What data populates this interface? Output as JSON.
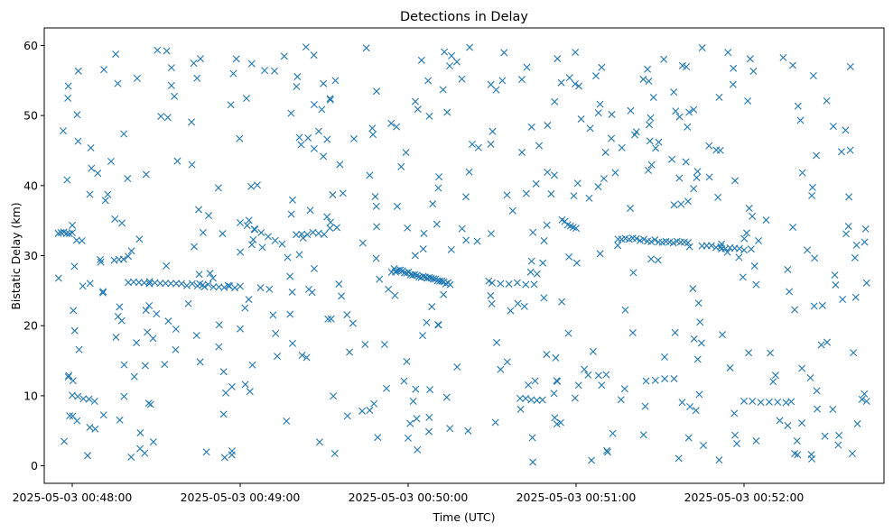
{
  "chart_data": {
    "type": "scatter",
    "title": "Detections in Delay",
    "xlabel": "Time (UTC)",
    "ylabel": "Bistatic Delay (km)",
    "marker": "x",
    "grid": false,
    "legend": "none",
    "color": "#1f77b4",
    "x_format": "YYYY-MM-DD HH:MM:SS",
    "xlim": [
      "2025-05-03 00:47:50",
      "2025-05-03 00:52:50"
    ],
    "ylim": [
      -2.5,
      62.5
    ],
    "x_ticks": [
      "2025-05-03 00:48:00",
      "2025-05-03 00:49:00",
      "2025-05-03 00:50:00",
      "2025-05-03 00:51:00",
      "2025-05-03 00:52:00"
    ],
    "y_ticks": [
      0,
      10,
      20,
      30,
      40,
      50,
      60
    ],
    "tracks": [
      {
        "x": [
          "00:48:20",
          "00:49:00"
        ],
        "y": [
          26.3,
          25.5
        ],
        "n": 22
      },
      {
        "x": [
          "00:49:55",
          "00:50:15"
        ],
        "y": [
          28.0,
          26.0
        ],
        "n": 28
      },
      {
        "x": [
          "00:51:15",
          "00:51:40"
        ],
        "y": [
          32.5,
          31.8
        ],
        "n": 20
      },
      {
        "x": [
          "00:51:45",
          "00:52:00"
        ],
        "y": [
          31.5,
          30.8
        ],
        "n": 10
      },
      {
        "x": [
          "00:47:55",
          "00:48:00"
        ],
        "y": [
          33.3,
          33.3
        ],
        "n": 6
      },
      {
        "x": [
          "00:50:55",
          "00:51:00"
        ],
        "y": [
          35.0,
          33.8
        ],
        "n": 6
      },
      {
        "x": [
          "00:49:20",
          "00:49:30"
        ],
        "y": [
          33.1,
          33.2
        ],
        "n": 6
      },
      {
        "x": [
          "00:49:00",
          "00:49:15"
        ],
        "y": [
          34.7,
          31.8
        ],
        "n": 7
      },
      {
        "x": [
          "00:48:00",
          "00:48:08"
        ],
        "y": [
          10.0,
          9.3
        ],
        "n": 5
      },
      {
        "x": [
          "00:50:40",
          "00:50:48"
        ],
        "y": [
          9.5,
          9.5
        ],
        "n": 5
      },
      {
        "x": [
          "00:51:25",
          "00:51:35"
        ],
        "y": [
          12.2,
          12.4
        ],
        "n": 4
      },
      {
        "x": [
          "00:52:00",
          "00:52:15"
        ],
        "y": [
          9.2,
          9.0
        ],
        "n": 6
      },
      {
        "x": [
          "00:50:30",
          "00:50:45"
        ],
        "y": [
          26.2,
          26.0
        ],
        "n": 6
      },
      {
        "x": [
          "00:48:15",
          "00:48:20"
        ],
        "y": [
          29.2,
          29.8
        ],
        "n": 4
      },
      {
        "x": [
          "00:51:35",
          "00:51:40"
        ],
        "y": [
          37.2,
          37.6
        ],
        "n": 3
      }
    ],
    "scatter": {
      "count": 520,
      "x_range": [
        "2025-05-03 00:47:55",
        "2025-05-03 00:52:45"
      ],
      "y_range": [
        0.5,
        59.8
      ]
    }
  }
}
